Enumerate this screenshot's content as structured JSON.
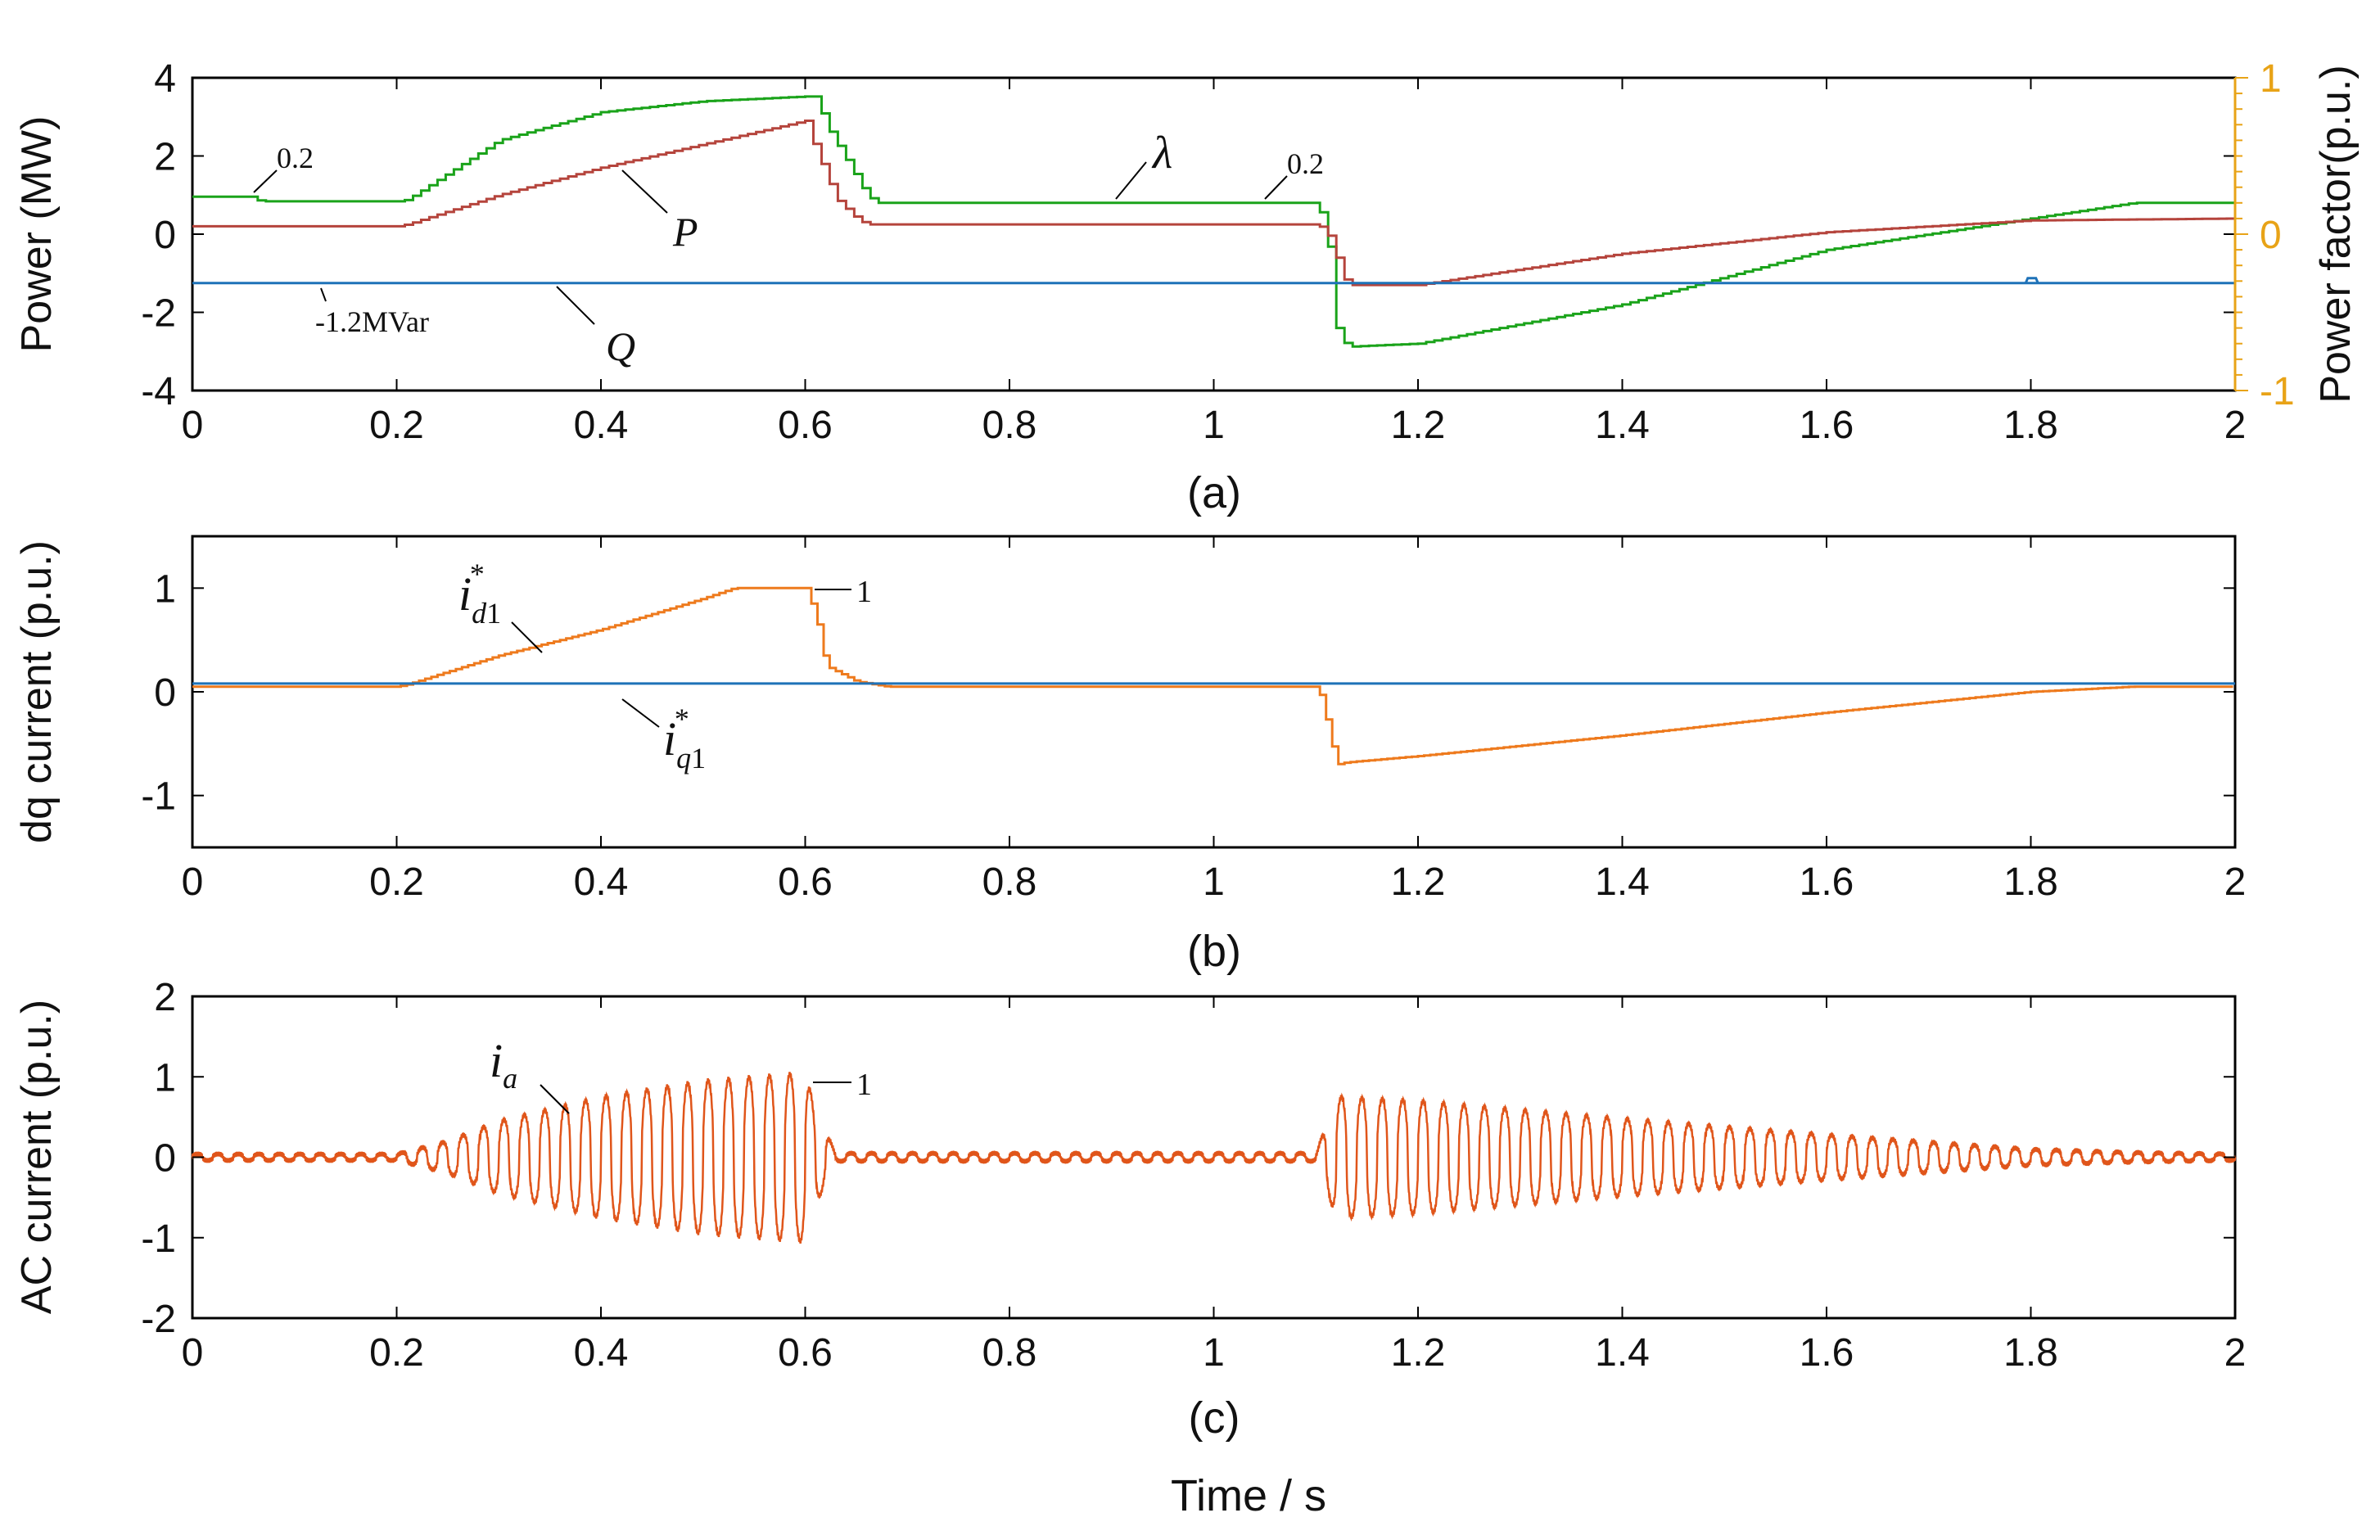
{
  "xlabel": "Time / s",
  "colors": {
    "P": "#b5443c",
    "Q": "#1e72b8",
    "lambda": "#1aa31a",
    "pf_axis": "#e8a317",
    "dq": "#ee7a1d",
    "ac": "#e0551a"
  },
  "chart_data": [
    {
      "type": "line",
      "caption": "(a)",
      "ylabel": "Power (MW)",
      "y2label": "Power factor(p.u.)",
      "xlim": [
        0,
        2
      ],
      "ylim": [
        -4,
        4
      ],
      "y2lim": [
        -1,
        1
      ],
      "xticks": [
        "0",
        "0.2",
        "0.4",
        "0.6",
        "0.8",
        "1",
        "1.2",
        "1.4",
        "1.6",
        "1.8",
        "2"
      ],
      "yticks": [
        "4",
        "2",
        "0",
        "-2",
        "-4"
      ],
      "y2ticks": [
        "1",
        "0",
        "-1"
      ],
      "series": [
        {
          "name": "λ",
          "axis": "y2",
          "x": [
            0,
            0.06,
            0.065,
            0.2,
            0.21,
            0.3,
            0.4,
            0.5,
            0.6,
            0.61,
            0.62,
            0.66,
            0.67,
            1.1,
            1.11,
            1.12,
            1.13,
            1.2,
            1.4,
            1.6,
            1.8,
            1.9,
            2.0
          ],
          "y": [
            0.24,
            0.24,
            0.21,
            0.21,
            0.22,
            0.6,
            0.78,
            0.85,
            0.88,
            0.88,
            0.7,
            0.25,
            0.2,
            0.2,
            0.05,
            -0.6,
            -0.72,
            -0.7,
            -0.45,
            -0.1,
            0.1,
            0.2,
            0.2
          ]
        },
        {
          "name": "P",
          "axis": "y",
          "x": [
            0,
            0.2,
            0.21,
            0.3,
            0.4,
            0.5,
            0.6,
            0.605,
            0.63,
            0.65,
            0.66,
            1.1,
            1.11,
            1.13,
            1.2,
            1.4,
            1.6,
            1.8,
            2.0
          ],
          "y": [
            0.2,
            0.2,
            0.25,
            1.0,
            1.7,
            2.3,
            2.9,
            2.5,
            0.9,
            0.4,
            0.25,
            0.25,
            0.1,
            -1.3,
            -1.3,
            -0.5,
            0.05,
            0.35,
            0.4
          ]
        },
        {
          "name": "Q",
          "axis": "y",
          "x": [
            0,
            2
          ],
          "y": [
            -1.25,
            -1.25
          ]
        }
      ],
      "annotations": {
        "lambda": "λ",
        "P": "P",
        "Q": "Q",
        "lambda_low_left": "0.2",
        "lambda_low_right": "0.2",
        "q_value": "-1.2MVar"
      }
    },
    {
      "type": "line",
      "caption": "(b)",
      "ylabel": "dq current (p.u.)",
      "xlim": [
        0,
        2
      ],
      "ylim": [
        -1.5,
        1.5
      ],
      "xticks": [
        "0",
        "0.2",
        "0.4",
        "0.6",
        "0.8",
        "1",
        "1.2",
        "1.4",
        "1.6",
        "1.8",
        "2"
      ],
      "yticks": [
        "1",
        "0",
        "-1"
      ],
      "series": [
        {
          "name": "i*d1",
          "x": [
            0,
            0.2,
            0.21,
            0.3,
            0.4,
            0.5,
            0.53,
            0.6,
            0.61,
            0.62,
            0.65,
            0.68,
            1.1,
            1.105,
            1.12,
            1.13,
            1.2,
            1.4,
            1.6,
            1.8,
            1.9,
            2.0
          ],
          "y": [
            0.05,
            0.05,
            0.07,
            0.35,
            0.6,
            0.9,
            1.0,
            1.0,
            0.75,
            0.25,
            0.1,
            0.05,
            0.05,
            -0.05,
            -0.7,
            -0.68,
            -0.62,
            -0.42,
            -0.2,
            0.0,
            0.05,
            0.05
          ]
        },
        {
          "name": "i*q1",
          "x": [
            0,
            2
          ],
          "y": [
            0.08,
            0.08
          ]
        }
      ],
      "annotations": {
        "id_label": "i*d1",
        "iq_label": "i*q1",
        "id_peak": "1"
      }
    },
    {
      "type": "line",
      "caption": "(c)",
      "ylabel": "AC current (p.u.)",
      "xlim": [
        0,
        2
      ],
      "ylim": [
        -2,
        2
      ],
      "xticks": [
        "0",
        "0.2",
        "0.4",
        "0.6",
        "0.8",
        "1",
        "1.2",
        "1.4",
        "1.6",
        "1.8",
        "2"
      ],
      "yticks": [
        "2",
        "1",
        "0",
        "-1",
        "-2"
      ],
      "series": [
        {
          "name": "ia",
          "frequency_hz": 50,
          "envelope_x": [
            0,
            0.2,
            0.25,
            0.3,
            0.4,
            0.5,
            0.6,
            0.61,
            0.63,
            1.1,
            1.12,
            1.2,
            1.4,
            1.6,
            1.8,
            1.9,
            2.0
          ],
          "envelope_amp": [
            0.04,
            0.04,
            0.2,
            0.45,
            0.75,
            0.95,
            1.05,
            0.6,
            0.05,
            0.05,
            0.75,
            0.7,
            0.48,
            0.28,
            0.1,
            0.06,
            0.04
          ]
        }
      ],
      "annotations": {
        "ia_label": "ia",
        "ia_peak": "1"
      }
    }
  ]
}
